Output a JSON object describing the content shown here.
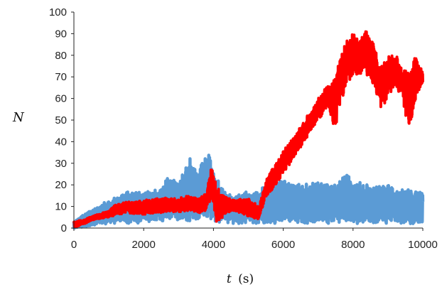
{
  "chart_data": {
    "type": "line",
    "title": "",
    "xlabel": {
      "var": "t",
      "unit": "(s)"
    },
    "ylabel": "N",
    "xlim": [
      0,
      10000
    ],
    "ylim": [
      0,
      100
    ],
    "x_ticks": [
      0,
      2000,
      4000,
      6000,
      8000,
      10000
    ],
    "y_ticks": [
      0,
      10,
      20,
      30,
      40,
      50,
      60,
      70,
      80,
      90,
      100
    ],
    "grid": false,
    "legend": "none",
    "series": [
      {
        "color": "#5b9bd5",
        "style": "noisy-band",
        "x": [
          0,
          500,
          1000,
          1500,
          2000,
          2500,
          2700,
          3000,
          3300,
          3500,
          3700,
          3900,
          4000,
          4200,
          4500,
          5000,
          5300,
          5600,
          6000,
          6500,
          7000,
          7500,
          7800,
          8000,
          8500,
          9000,
          9500,
          10000
        ],
        "low": [
          0,
          1,
          2,
          2,
          2,
          3,
          3,
          3,
          3,
          3,
          3,
          3,
          3,
          2,
          2,
          2,
          2,
          2,
          2,
          2,
          2,
          2,
          2,
          2,
          2,
          2,
          2,
          2
        ],
        "high": [
          3,
          9,
          13,
          17,
          17,
          18,
          25,
          21,
          33,
          30,
          32,
          35,
          28,
          20,
          15,
          17,
          17,
          22,
          22,
          20,
          22,
          20,
          25,
          22,
          20,
          20,
          18,
          17
        ]
      },
      {
        "color": "#ff0000",
        "style": "noisy-band",
        "x": [
          0,
          300,
          600,
          1000,
          1200,
          1500,
          2000,
          2500,
          3000,
          3300,
          3600,
          3800,
          3950,
          4100,
          4300,
          4600,
          5000,
          5300,
          5500,
          5700,
          6000,
          6300,
          6600,
          7000,
          7300,
          7500,
          7600,
          7800,
          8000,
          8200,
          8400,
          8600,
          8800,
          9000,
          9200,
          9400,
          9600,
          9800,
          10000
        ],
        "low": [
          0,
          2,
          4,
          5,
          6,
          7,
          6,
          7,
          7,
          8,
          7,
          8,
          14,
          0,
          6,
          8,
          5,
          4,
          14,
          18,
          25,
          32,
          40,
          50,
          56,
          44,
          55,
          66,
          70,
          71,
          70,
          66,
          55,
          60,
          65,
          60,
          45,
          60,
          67
        ],
        "high": [
          3,
          4,
          6,
          8,
          11,
          12,
          13,
          14,
          14,
          15,
          14,
          17,
          30,
          19,
          15,
          13,
          14,
          10,
          22,
          28,
          36,
          42,
          50,
          60,
          67,
          70,
          78,
          87,
          90,
          88,
          95,
          85,
          75,
          80,
          82,
          76,
          72,
          80,
          72
        ]
      }
    ]
  }
}
